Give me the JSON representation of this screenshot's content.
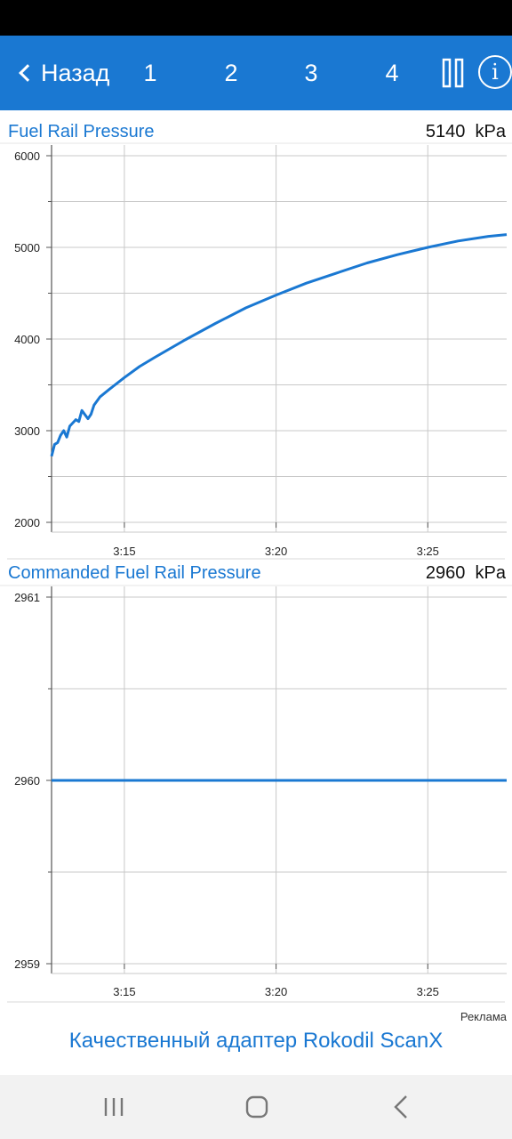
{
  "header": {
    "back_label": "Назад",
    "tabs": [
      "1",
      "2",
      "3",
      "4"
    ],
    "info_label": "i",
    "accent_color": "#1a78d2"
  },
  "charts": [
    {
      "title": "Fuel Rail Pressure",
      "value_text": "5140  kPa"
    },
    {
      "title": "Commanded Fuel Rail Pressure",
      "value_text": "2960  kPa"
    }
  ],
  "chart_data": [
    {
      "type": "line",
      "title": "Fuel Rail Pressure",
      "unit": "kPa",
      "xlim": [
        "3:12.6",
        "3:27.6"
      ],
      "ylim": [
        2000,
        6000
      ],
      "yticks": [
        "2000",
        "3000",
        "4000",
        "5000",
        "6000"
      ],
      "xticks": [
        "3:15",
        "3:20",
        "3:25"
      ],
      "grid": true,
      "series": [
        {
          "color": "#1a78d2",
          "x": [
            "3:12.6",
            "3:12.7",
            "3:12.8",
            "3:12.9",
            "3:13.0",
            "3:13.1",
            "3:13.2",
            "3:13.4",
            "3:13.5",
            "3:13.6",
            "3:13.8",
            "3:13.9",
            "3:14.0",
            "3:14.2",
            "3:14.5",
            "3:15.0",
            "3:15.5",
            "3:16.0",
            "3:17.0",
            "3:18.0",
            "3:19.0",
            "3:20.0",
            "3:21.0",
            "3:22.0",
            "3:23.0",
            "3:24.0",
            "3:25.0",
            "3:26.0",
            "3:27.0",
            "3:27.6"
          ],
          "values": [
            2720,
            2850,
            2870,
            2950,
            3000,
            2930,
            3050,
            3120,
            3100,
            3220,
            3130,
            3180,
            3280,
            3370,
            3450,
            3580,
            3700,
            3800,
            3990,
            4170,
            4340,
            4480,
            4610,
            4720,
            4830,
            4920,
            5000,
            5070,
            5120,
            5140
          ]
        }
      ]
    },
    {
      "type": "line",
      "title": "Commanded Fuel Rail Pressure",
      "unit": "kPa",
      "xlim": [
        "3:12.6",
        "3:27.6"
      ],
      "ylim": [
        2959,
        2961
      ],
      "yticks": [
        "2959",
        "2960",
        "2961"
      ],
      "xticks": [
        "3:15",
        "3:20",
        "3:25"
      ],
      "grid": true,
      "series": [
        {
          "color": "#1a78d2",
          "x": [
            "3:12.6",
            "3:27.6"
          ],
          "values": [
            2960,
            2960
          ]
        }
      ]
    }
  ],
  "ad": {
    "label": "Реклама",
    "text": "Качественный адаптер Rokodil ScanX"
  }
}
